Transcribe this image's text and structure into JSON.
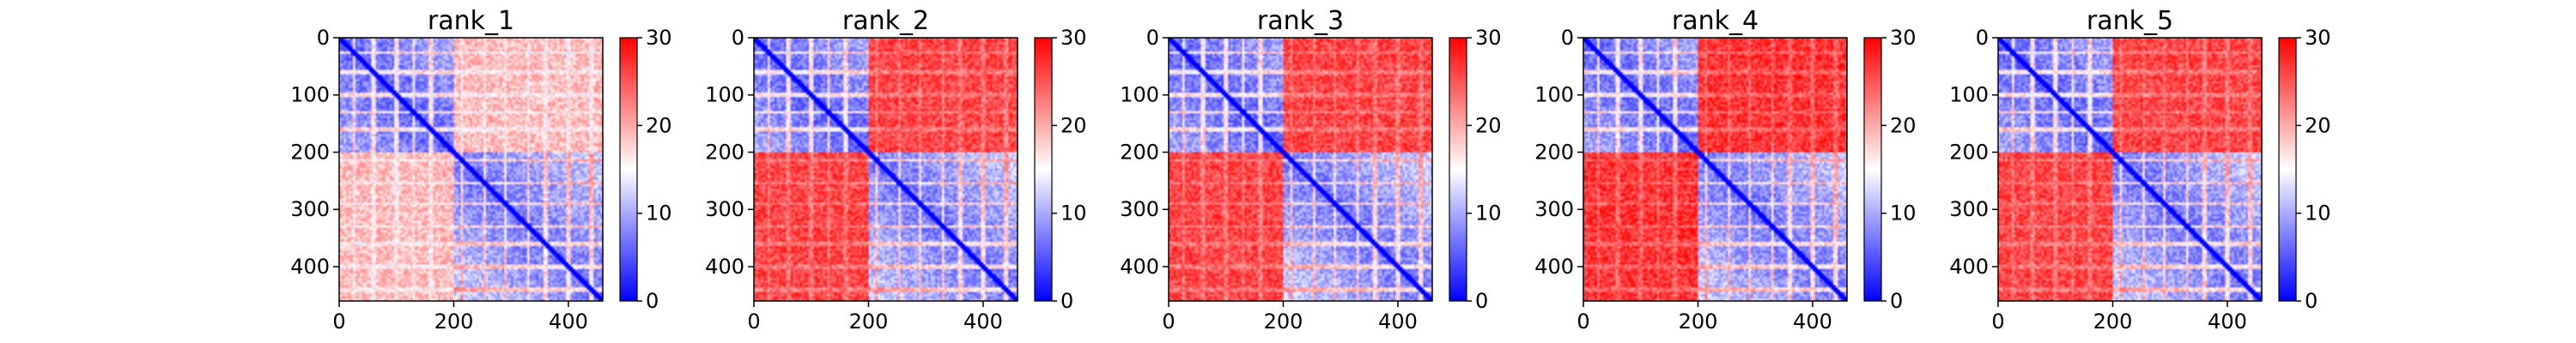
{
  "figure": {
    "background": "#ffffff"
  },
  "chart_data": [
    {
      "type": "heatmap",
      "title": "rank_1",
      "x": {
        "range": [
          0,
          460
        ],
        "ticks": [
          "0",
          "200",
          "400"
        ]
      },
      "y": {
        "range": [
          0,
          460
        ],
        "ticks": [
          "0",
          "100",
          "200",
          "300",
          "400"
        ],
        "direction": "top-to-bottom"
      },
      "colorbar": {
        "range": [
          0,
          30
        ],
        "ticks": [
          "0",
          "10",
          "20",
          "30"
        ],
        "colormap": "bwr",
        "colors": [
          "#0000ff",
          "#ffffff",
          "#ff0000"
        ]
      },
      "matrix": {
        "size": 460,
        "domain_boundaries": [
          0,
          200,
          460
        ],
        "block_means": [
          [
            6,
            19
          ],
          [
            19,
            7
          ]
        ],
        "diagonal": 0,
        "stripes": [
          25,
          60,
          100,
          130,
          160,
          215,
          255,
          290,
          330,
          360,
          400,
          440
        ]
      }
    },
    {
      "type": "heatmap",
      "title": "rank_2",
      "x": {
        "range": [
          0,
          460
        ],
        "ticks": [
          "0",
          "200",
          "400"
        ]
      },
      "y": {
        "range": [
          0,
          460
        ],
        "ticks": [
          "0",
          "100",
          "200",
          "300",
          "400"
        ],
        "direction": "top-to-bottom"
      },
      "colorbar": {
        "range": [
          0,
          30
        ],
        "ticks": [
          "0",
          "10",
          "20",
          "30"
        ],
        "colormap": "bwr",
        "colors": [
          "#0000ff",
          "#ffffff",
          "#ff0000"
        ]
      },
      "matrix": {
        "size": 460,
        "domain_boundaries": [
          0,
          200,
          460
        ],
        "block_means": [
          [
            6,
            26
          ],
          [
            26,
            7
          ]
        ],
        "diagonal": 0,
        "stripes": [
          25,
          60,
          100,
          130,
          160,
          215,
          255,
          290,
          330,
          360,
          400,
          440
        ]
      }
    },
    {
      "type": "heatmap",
      "title": "rank_3",
      "x": {
        "range": [
          0,
          460
        ],
        "ticks": [
          "0",
          "200",
          "400"
        ]
      },
      "y": {
        "range": [
          0,
          460
        ],
        "ticks": [
          "0",
          "100",
          "200",
          "300",
          "400"
        ],
        "direction": "top-to-bottom"
      },
      "colorbar": {
        "range": [
          0,
          30
        ],
        "ticks": [
          "0",
          "10",
          "20",
          "30"
        ],
        "colormap": "bwr",
        "colors": [
          "#0000ff",
          "#ffffff",
          "#ff0000"
        ]
      },
      "matrix": {
        "size": 460,
        "domain_boundaries": [
          0,
          200,
          460
        ],
        "block_means": [
          [
            6,
            26
          ],
          [
            26,
            7
          ]
        ],
        "diagonal": 0,
        "stripes": [
          25,
          60,
          100,
          130,
          160,
          215,
          255,
          290,
          330,
          360,
          400,
          440
        ]
      }
    },
    {
      "type": "heatmap",
      "title": "rank_4",
      "x": {
        "range": [
          0,
          460
        ],
        "ticks": [
          "0",
          "200",
          "400"
        ]
      },
      "y": {
        "range": [
          0,
          460
        ],
        "ticks": [
          "0",
          "100",
          "200",
          "300",
          "400"
        ],
        "direction": "top-to-bottom"
      },
      "colorbar": {
        "range": [
          0,
          30
        ],
        "ticks": [
          "0",
          "10",
          "20",
          "30"
        ],
        "colormap": "bwr",
        "colors": [
          "#0000ff",
          "#ffffff",
          "#ff0000"
        ]
      },
      "matrix": {
        "size": 460,
        "domain_boundaries": [
          0,
          200,
          460
        ],
        "block_means": [
          [
            6,
            27
          ],
          [
            27,
            7
          ]
        ],
        "diagonal": 0,
        "stripes": [
          25,
          60,
          100,
          130,
          160,
          215,
          255,
          290,
          330,
          360,
          400,
          440
        ]
      }
    },
    {
      "type": "heatmap",
      "title": "rank_5",
      "x": {
        "range": [
          0,
          460
        ],
        "ticks": [
          "0",
          "200",
          "400"
        ]
      },
      "y": {
        "range": [
          0,
          460
        ],
        "ticks": [
          "0",
          "100",
          "200",
          "300",
          "400"
        ],
        "direction": "top-to-bottom"
      },
      "colorbar": {
        "range": [
          0,
          30
        ],
        "ticks": [
          "0",
          "10",
          "20",
          "30"
        ],
        "colormap": "bwr",
        "colors": [
          "#0000ff",
          "#ffffff",
          "#ff0000"
        ]
      },
      "matrix": {
        "size": 460,
        "domain_boundaries": [
          0,
          200,
          460
        ],
        "block_means": [
          [
            6,
            26
          ],
          [
            26,
            7
          ]
        ],
        "diagonal": 0,
        "stripes": [
          25,
          60,
          100,
          130,
          160,
          215,
          255,
          290,
          330,
          360,
          400,
          440
        ]
      }
    }
  ]
}
